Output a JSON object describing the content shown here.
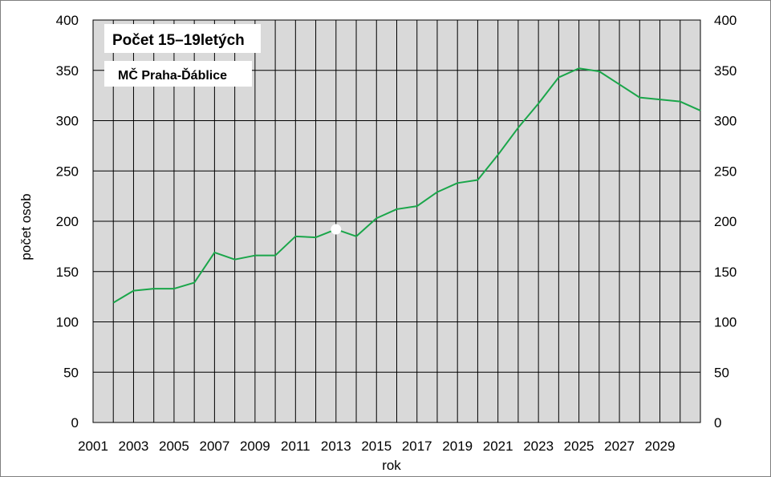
{
  "chart_data": {
    "type": "line",
    "title": "Počet 15–19letých",
    "subtitle": "MČ Praha-Ďáblice",
    "xlabel": "rok",
    "ylabel": "počet osob",
    "xlim": [
      2001,
      2031
    ],
    "ylim": [
      0,
      400
    ],
    "ytick_step": 50,
    "x_tick_labels": [
      "2001",
      "2003",
      "2005",
      "2007",
      "2009",
      "2011",
      "2013",
      "2015",
      "2017",
      "2019",
      "2021",
      "2023",
      "2025",
      "2027",
      "2029"
    ],
    "y_tick_labels": [
      "0",
      "50",
      "100",
      "150",
      "200",
      "250",
      "300",
      "350",
      "400"
    ],
    "grid": true,
    "plot_background": "#d9d9d9",
    "series": [
      {
        "color": "#1aa64a",
        "x": [
          2002,
          2003,
          2004,
          2005,
          2006,
          2007,
          2008,
          2009,
          2010,
          2011,
          2012,
          2013,
          2014,
          2015,
          2016,
          2017,
          2018,
          2019,
          2020,
          2021,
          2022,
          2023,
          2024,
          2025,
          2026,
          2027,
          2028,
          2029,
          2030,
          2031
        ],
        "y": [
          119,
          131,
          133,
          133,
          139,
          169,
          162,
          166,
          166,
          185,
          184,
          192,
          185,
          203,
          212,
          215,
          229,
          238,
          241,
          266,
          293,
          317,
          343,
          352,
          349,
          336,
          323,
          321,
          319,
          310
        ]
      }
    ],
    "highlight_point": {
      "x": 2013,
      "y": 192,
      "color": "#ffffff"
    }
  }
}
